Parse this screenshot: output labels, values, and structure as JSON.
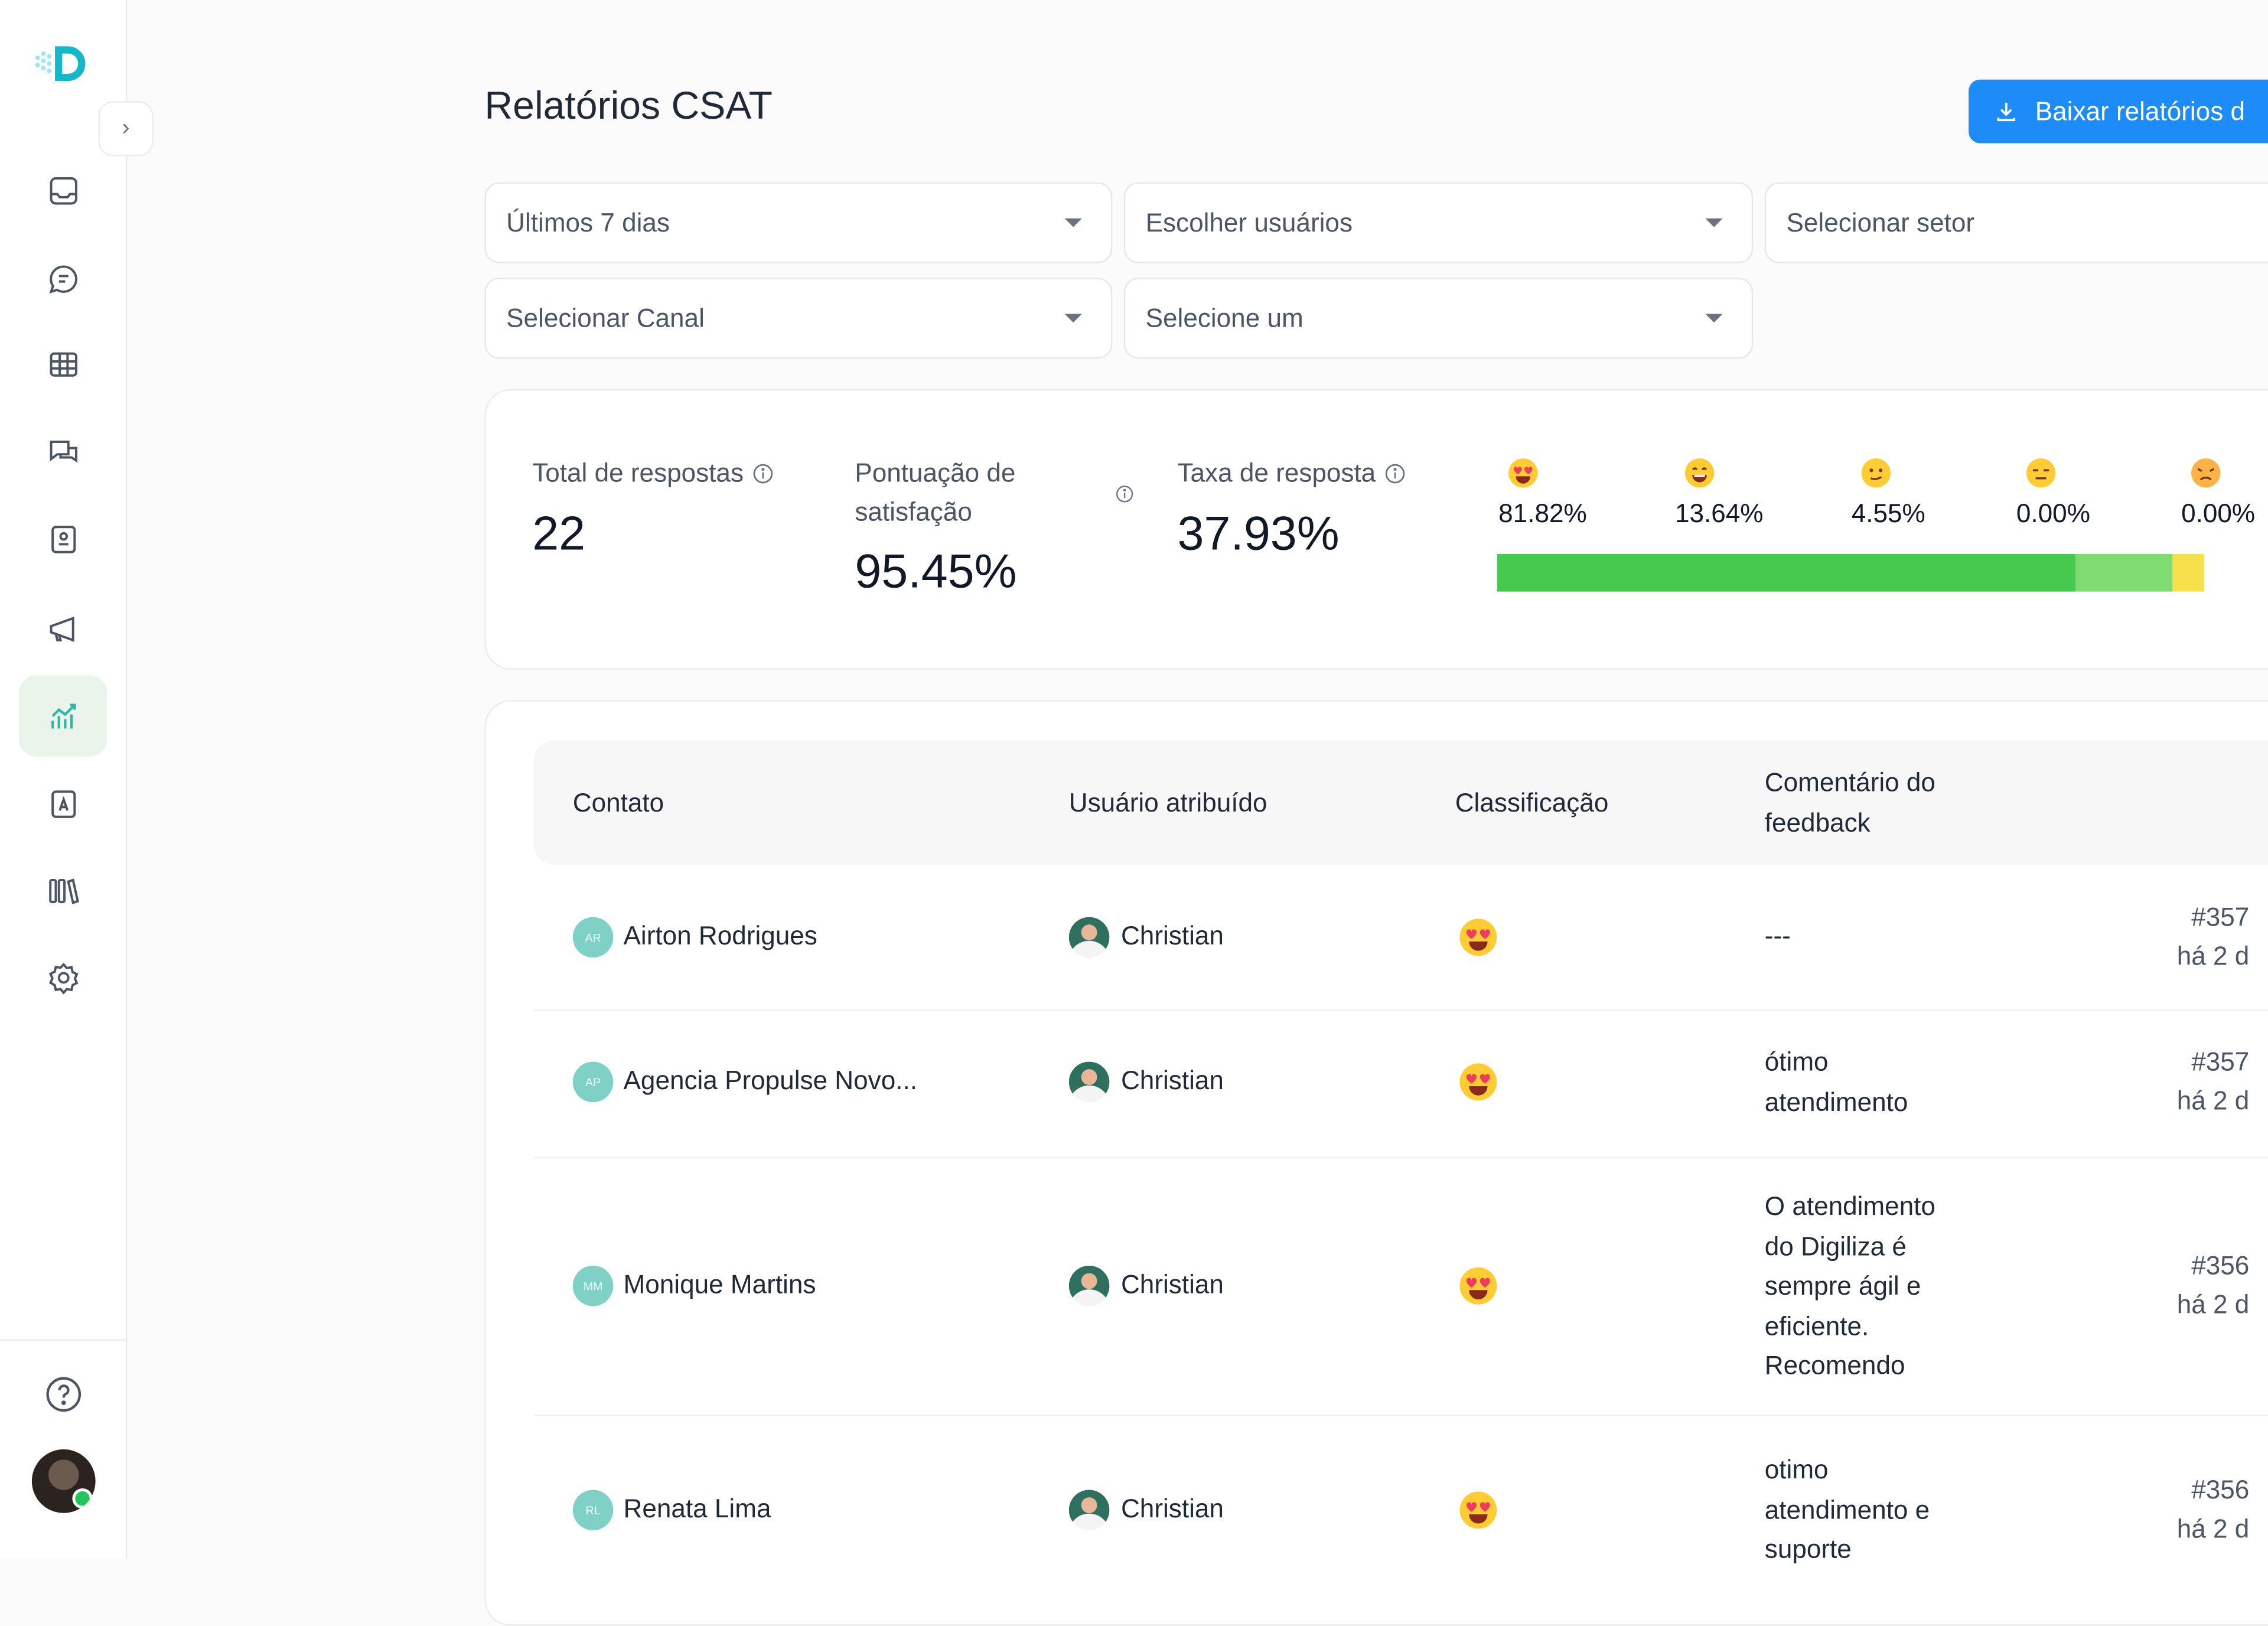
{
  "page": {
    "title": "Relatórios CSAT",
    "download_label": "Baixar relatórios d"
  },
  "filters": {
    "period": "Últimos 7 dias",
    "users": "Escolher usuários",
    "sector": "Selecionar setor",
    "channel": "Selecionar Canal",
    "other": "Selecione um"
  },
  "stats": {
    "total_label": "Total de respostas",
    "total_value": "22",
    "score_label": "Pontuação de satisfação",
    "score_value": "95.45%",
    "rate_label": "Taxa de resposta",
    "rate_value": "37.93%"
  },
  "distribution": [
    {
      "emoji": "heart-eyes",
      "pct": "81.82%",
      "fraction": 0.8182,
      "color": "#45c94e"
    },
    {
      "emoji": "grin",
      "pct": "13.64%",
      "fraction": 0.1364,
      "color": "#7fdc73"
    },
    {
      "emoji": "neutral",
      "pct": "4.55%",
      "fraction": 0.0455,
      "color": "#f5e14b"
    },
    {
      "emoji": "unamused",
      "pct": "0.00%",
      "fraction": 0.0,
      "color": "#f5a623"
    },
    {
      "emoji": "disappointed",
      "pct": "0.00%",
      "fraction": 0.0,
      "color": "#ef4444"
    }
  ],
  "table": {
    "headers": {
      "contact": "Contato",
      "user": "Usuário atribuído",
      "rating": "Classificação",
      "comment": "Comentário do feedback"
    },
    "rows": [
      {
        "initials": "AR",
        "contact": "Airton Rodrigues",
        "user": "Christian",
        "comment": "---",
        "ticket": "#357",
        "time": "há 2 d"
      },
      {
        "initials": "AP",
        "contact": "Agencia Propulse Novo...",
        "user": "Christian",
        "comment": "ótimo atendimento",
        "ticket": "#357",
        "time": "há 2 d"
      },
      {
        "initials": "MM",
        "contact": "Monique Martins",
        "user": "Christian",
        "comment": "O atendimento do Digiliza é sempre ágil e eficiente. Recomendo",
        "ticket": "#356",
        "time": "há 2 d"
      },
      {
        "initials": "RL",
        "contact": "Renata Lima",
        "user": "Christian",
        "comment": "otimo atendimento e suporte",
        "ticket": "#356",
        "time": "há 2 d"
      }
    ]
  },
  "colors": {
    "accent": "#1d8cf8",
    "brand": "#14b8c8",
    "nav_active": "#eaf4ea"
  },
  "icons": {
    "nav": [
      "inbox-icon",
      "chat-icon",
      "grid-icon",
      "conversations-icon",
      "contacts-icon",
      "megaphone-icon",
      "reports-icon",
      "contact-card-icon",
      "library-icon",
      "settings-icon"
    ]
  }
}
